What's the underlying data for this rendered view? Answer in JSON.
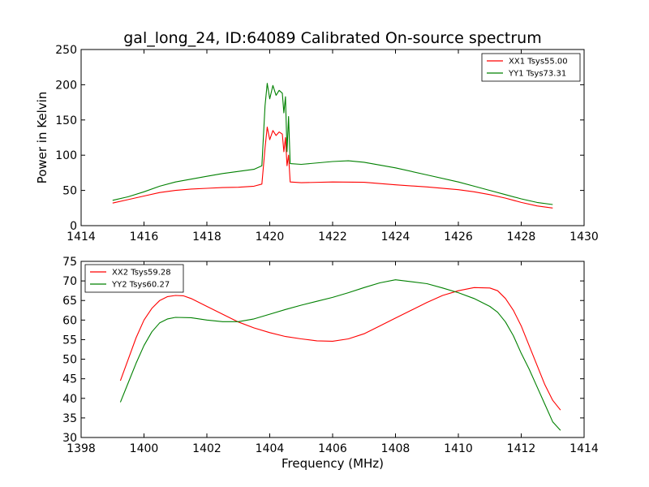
{
  "figure": {
    "title": "gal_long_24, ID:64089 Calibrated On-source spectrum"
  },
  "colors": {
    "xx": "#ff0000",
    "yy": "#008000"
  },
  "chart_data": [
    {
      "type": "line",
      "title": "gal_long_24, ID:64089 Calibrated On-source spectrum",
      "xlabel": "",
      "ylabel": "Power in Kelvin",
      "xlim": [
        1414,
        1430
      ],
      "ylim": [
        0,
        250
      ],
      "xticks": [
        "1414",
        "1416",
        "1418",
        "1420",
        "1422",
        "1424",
        "1426",
        "1428",
        "1430"
      ],
      "yticks": [
        "0",
        "50",
        "100",
        "150",
        "200",
        "250"
      ],
      "grid": false,
      "legend_position": "top-right",
      "series": [
        {
          "name": "XX1 Tsys55.00",
          "color": "#ff0000",
          "points": [
            [
              1415,
              32
            ],
            [
              1415.5,
              37
            ],
            [
              1416,
              42
            ],
            [
              1416.5,
              47
            ],
            [
              1417,
              50
            ],
            [
              1417.5,
              52
            ],
            [
              1418,
              53
            ],
            [
              1418.5,
              54
            ],
            [
              1419,
              54.5
            ],
            [
              1419.5,
              56
            ],
            [
              1419.75,
              59
            ],
            [
              1419.85,
              110
            ],
            [
              1419.92,
              140
            ],
            [
              1420.0,
              122
            ],
            [
              1420.1,
              135
            ],
            [
              1420.2,
              128
            ],
            [
              1420.3,
              133
            ],
            [
              1420.4,
              130
            ],
            [
              1420.45,
              105
            ],
            [
              1420.5,
              125
            ],
            [
              1420.55,
              85
            ],
            [
              1420.6,
              100
            ],
            [
              1420.65,
              62
            ],
            [
              1421,
              61
            ],
            [
              1422,
              62
            ],
            [
              1423,
              61.5
            ],
            [
              1424,
              58
            ],
            [
              1425,
              55
            ],
            [
              1426,
              51
            ],
            [
              1426.5,
              48
            ],
            [
              1427,
              44
            ],
            [
              1427.5,
              39
            ],
            [
              1428,
              33
            ],
            [
              1428.5,
              28
            ],
            [
              1429,
              25
            ]
          ]
        },
        {
          "name": "YY1 Tsys73.31",
          "color": "#008000",
          "points": [
            [
              1415,
              36
            ],
            [
              1415.5,
              41
            ],
            [
              1416,
              48
            ],
            [
              1416.5,
              56
            ],
            [
              1417,
              62
            ],
            [
              1417.5,
              66
            ],
            [
              1418,
              70
            ],
            [
              1418.5,
              74
            ],
            [
              1419,
              77
            ],
            [
              1419.5,
              80
            ],
            [
              1419.75,
              85
            ],
            [
              1419.85,
              170
            ],
            [
              1419.92,
              202
            ],
            [
              1420.0,
              180
            ],
            [
              1420.1,
              199
            ],
            [
              1420.2,
              185
            ],
            [
              1420.3,
              192
            ],
            [
              1420.4,
              188
            ],
            [
              1420.45,
              160
            ],
            [
              1420.5,
              183
            ],
            [
              1420.55,
              105
            ],
            [
              1420.6,
              155
            ],
            [
              1420.65,
              88
            ],
            [
              1421,
              87
            ],
            [
              1422,
              91
            ],
            [
              1422.5,
              92
            ],
            [
              1423,
              90
            ],
            [
              1424,
              82
            ],
            [
              1425,
              72
            ],
            [
              1426,
              62
            ],
            [
              1426.5,
              56
            ],
            [
              1427,
              50
            ],
            [
              1427.5,
              44
            ],
            [
              1428,
              38
            ],
            [
              1428.5,
              33
            ],
            [
              1429,
              30
            ]
          ]
        }
      ]
    },
    {
      "type": "line",
      "title": "",
      "xlabel": "Frequency (MHz)",
      "ylabel": "",
      "xlim": [
        1398,
        1414
      ],
      "ylim": [
        30,
        75
      ],
      "xticks": [
        "1398",
        "1400",
        "1402",
        "1404",
        "1406",
        "1408",
        "1410",
        "1412",
        "1414"
      ],
      "yticks": [
        "30",
        "35",
        "40",
        "45",
        "50",
        "55",
        "60",
        "65",
        "70",
        "75"
      ],
      "grid": false,
      "legend_position": "top-left",
      "series": [
        {
          "name": "XX2 Tsys59.28",
          "color": "#ff0000",
          "points": [
            [
              1399.25,
              44.5
            ],
            [
              1399.5,
              50
            ],
            [
              1399.75,
              55.5
            ],
            [
              1400,
              60
            ],
            [
              1400.25,
              63
            ],
            [
              1400.5,
              65
            ],
            [
              1400.75,
              66
            ],
            [
              1401,
              66.3
            ],
            [
              1401.25,
              66.2
            ],
            [
              1401.5,
              65.5
            ],
            [
              1401.75,
              64.5
            ],
            [
              1402,
              63.5
            ],
            [
              1402.5,
              61.5
            ],
            [
              1403,
              59.5
            ],
            [
              1403.5,
              58
            ],
            [
              1404,
              56.8
            ],
            [
              1404.5,
              55.8
            ],
            [
              1405,
              55.2
            ],
            [
              1405.5,
              54.7
            ],
            [
              1406,
              54.6
            ],
            [
              1406.5,
              55.2
            ],
            [
              1407,
              56.5
            ],
            [
              1407.5,
              58.5
            ],
            [
              1408,
              60.5
            ],
            [
              1408.5,
              62.5
            ],
            [
              1409,
              64.5
            ],
            [
              1409.5,
              66.3
            ],
            [
              1410,
              67.5
            ],
            [
              1410.5,
              68.3
            ],
            [
              1411,
              68.2
            ],
            [
              1411.25,
              67.5
            ],
            [
              1411.5,
              65.5
            ],
            [
              1411.75,
              62.5
            ],
            [
              1412,
              58.5
            ],
            [
              1412.25,
              53.5
            ],
            [
              1412.5,
              48.5
            ],
            [
              1412.75,
              43.5
            ],
            [
              1413,
              39.5
            ],
            [
              1413.25,
              37
            ]
          ]
        },
        {
          "name": "YY2 Tsys60.27",
          "color": "#008000",
          "points": [
            [
              1399.25,
              39
            ],
            [
              1399.5,
              44
            ],
            [
              1399.75,
              49
            ],
            [
              1400,
              53.5
            ],
            [
              1400.25,
              57
            ],
            [
              1400.5,
              59.3
            ],
            [
              1400.75,
              60.3
            ],
            [
              1401,
              60.7
            ],
            [
              1401.5,
              60.6
            ],
            [
              1402,
              60
            ],
            [
              1402.5,
              59.6
            ],
            [
              1403,
              59.6
            ],
            [
              1403.5,
              60.3
            ],
            [
              1404,
              61.5
            ],
            [
              1404.5,
              62.7
            ],
            [
              1405,
              63.8
            ],
            [
              1405.5,
              64.8
            ],
            [
              1406,
              65.8
            ],
            [
              1406.5,
              67
            ],
            [
              1407,
              68.3
            ],
            [
              1407.5,
              69.5
            ],
            [
              1408,
              70.3
            ],
            [
              1408.5,
              69.8
            ],
            [
              1409,
              69.3
            ],
            [
              1409.5,
              68.2
            ],
            [
              1410,
              67
            ],
            [
              1410.5,
              65.5
            ],
            [
              1411,
              63.5
            ],
            [
              1411.25,
              62
            ],
            [
              1411.5,
              59.5
            ],
            [
              1411.75,
              56
            ],
            [
              1412,
              51.5
            ],
            [
              1412.25,
              47.5
            ],
            [
              1412.5,
              43
            ],
            [
              1412.75,
              38.5
            ],
            [
              1413,
              34
            ],
            [
              1413.25,
              31.8
            ]
          ]
        }
      ]
    }
  ]
}
